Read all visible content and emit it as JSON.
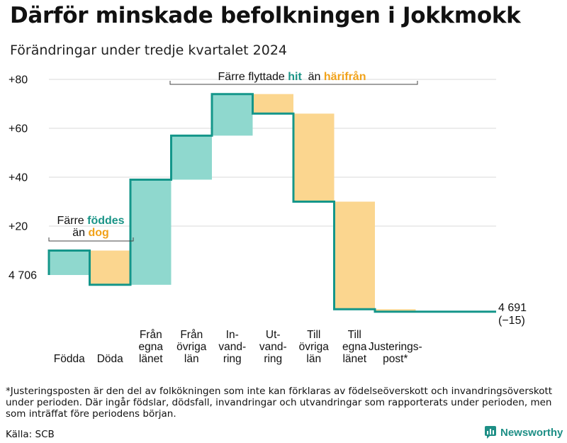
{
  "title": "Därför minskade befolkningen i Jokkmokk",
  "subtitle": "Förändringar under tredje kvartalet 2024",
  "colors": {
    "increase": "#8fd8ce",
    "decrease": "#fbd68f",
    "line": "#14968a",
    "accent_orange": "#f1a21a",
    "grid": "#d8d8d8"
  },
  "chart_data": {
    "type": "waterfall",
    "title": "Därför minskade befolkningen i Jokkmokk",
    "subtitle": "Förändringar under tredje kvartalet 2024",
    "baseline": 4706,
    "end_value": 4691,
    "end_change": -15,
    "ylim": [
      -16,
      80
    ],
    "yticks": [
      {
        "value": 0,
        "label": "4 706"
      },
      {
        "value": 20,
        "label": "+20"
      },
      {
        "value": 40,
        "label": "+40"
      },
      {
        "value": 60,
        "label": "+60"
      },
      {
        "value": 80,
        "label": "+80"
      }
    ],
    "categories": [
      {
        "label": [
          "Födda"
        ],
        "start": 0,
        "end": 10
      },
      {
        "label": [
          "Döda"
        ],
        "start": 10,
        "end": -4
      },
      {
        "label": [
          "Från",
          "egna",
          "länet"
        ],
        "start": -4,
        "end": 39
      },
      {
        "label": [
          "Från",
          "övriga",
          "län"
        ],
        "start": 39,
        "end": 57
      },
      {
        "label": [
          "In-",
          "vand-",
          "ring"
        ],
        "start": 57,
        "end": 74
      },
      {
        "label": [
          "Ut-",
          "vand-",
          "ring"
        ],
        "start": 74,
        "end": 66
      },
      {
        "label": [
          "Till",
          "övriga",
          "län"
        ],
        "start": 66,
        "end": 30
      },
      {
        "label": [
          "Till",
          "egna",
          "länet"
        ],
        "start": 30,
        "end": -14
      },
      {
        "label": [
          "Justerings-",
          "post*"
        ],
        "start": -14,
        "end": -15
      }
    ],
    "end_label": [
      "4 691",
      "(−15)"
    ],
    "annotations": {
      "births": {
        "line1_prefix": "Färre ",
        "line1_highlight": "föddes",
        "line2_prefix": "än ",
        "line2_highlight": "dog"
      },
      "migration": {
        "prefix": "Färre flyttade ",
        "highlight1": "hit",
        "middle": "  än ",
        "highlight2": "härifrån"
      }
    }
  },
  "footnote": "*Justeringsposten är den del av folkökningen som inte kan förklaras av födelseöverskott och invandringsöverskott under perioden. Där ingår födslar, dödsfall, invandringar och utvandringar som rapporterats under perioden, men som inträffat före periodens början.",
  "source": "Källa: SCB",
  "brand": "Newsworthy"
}
